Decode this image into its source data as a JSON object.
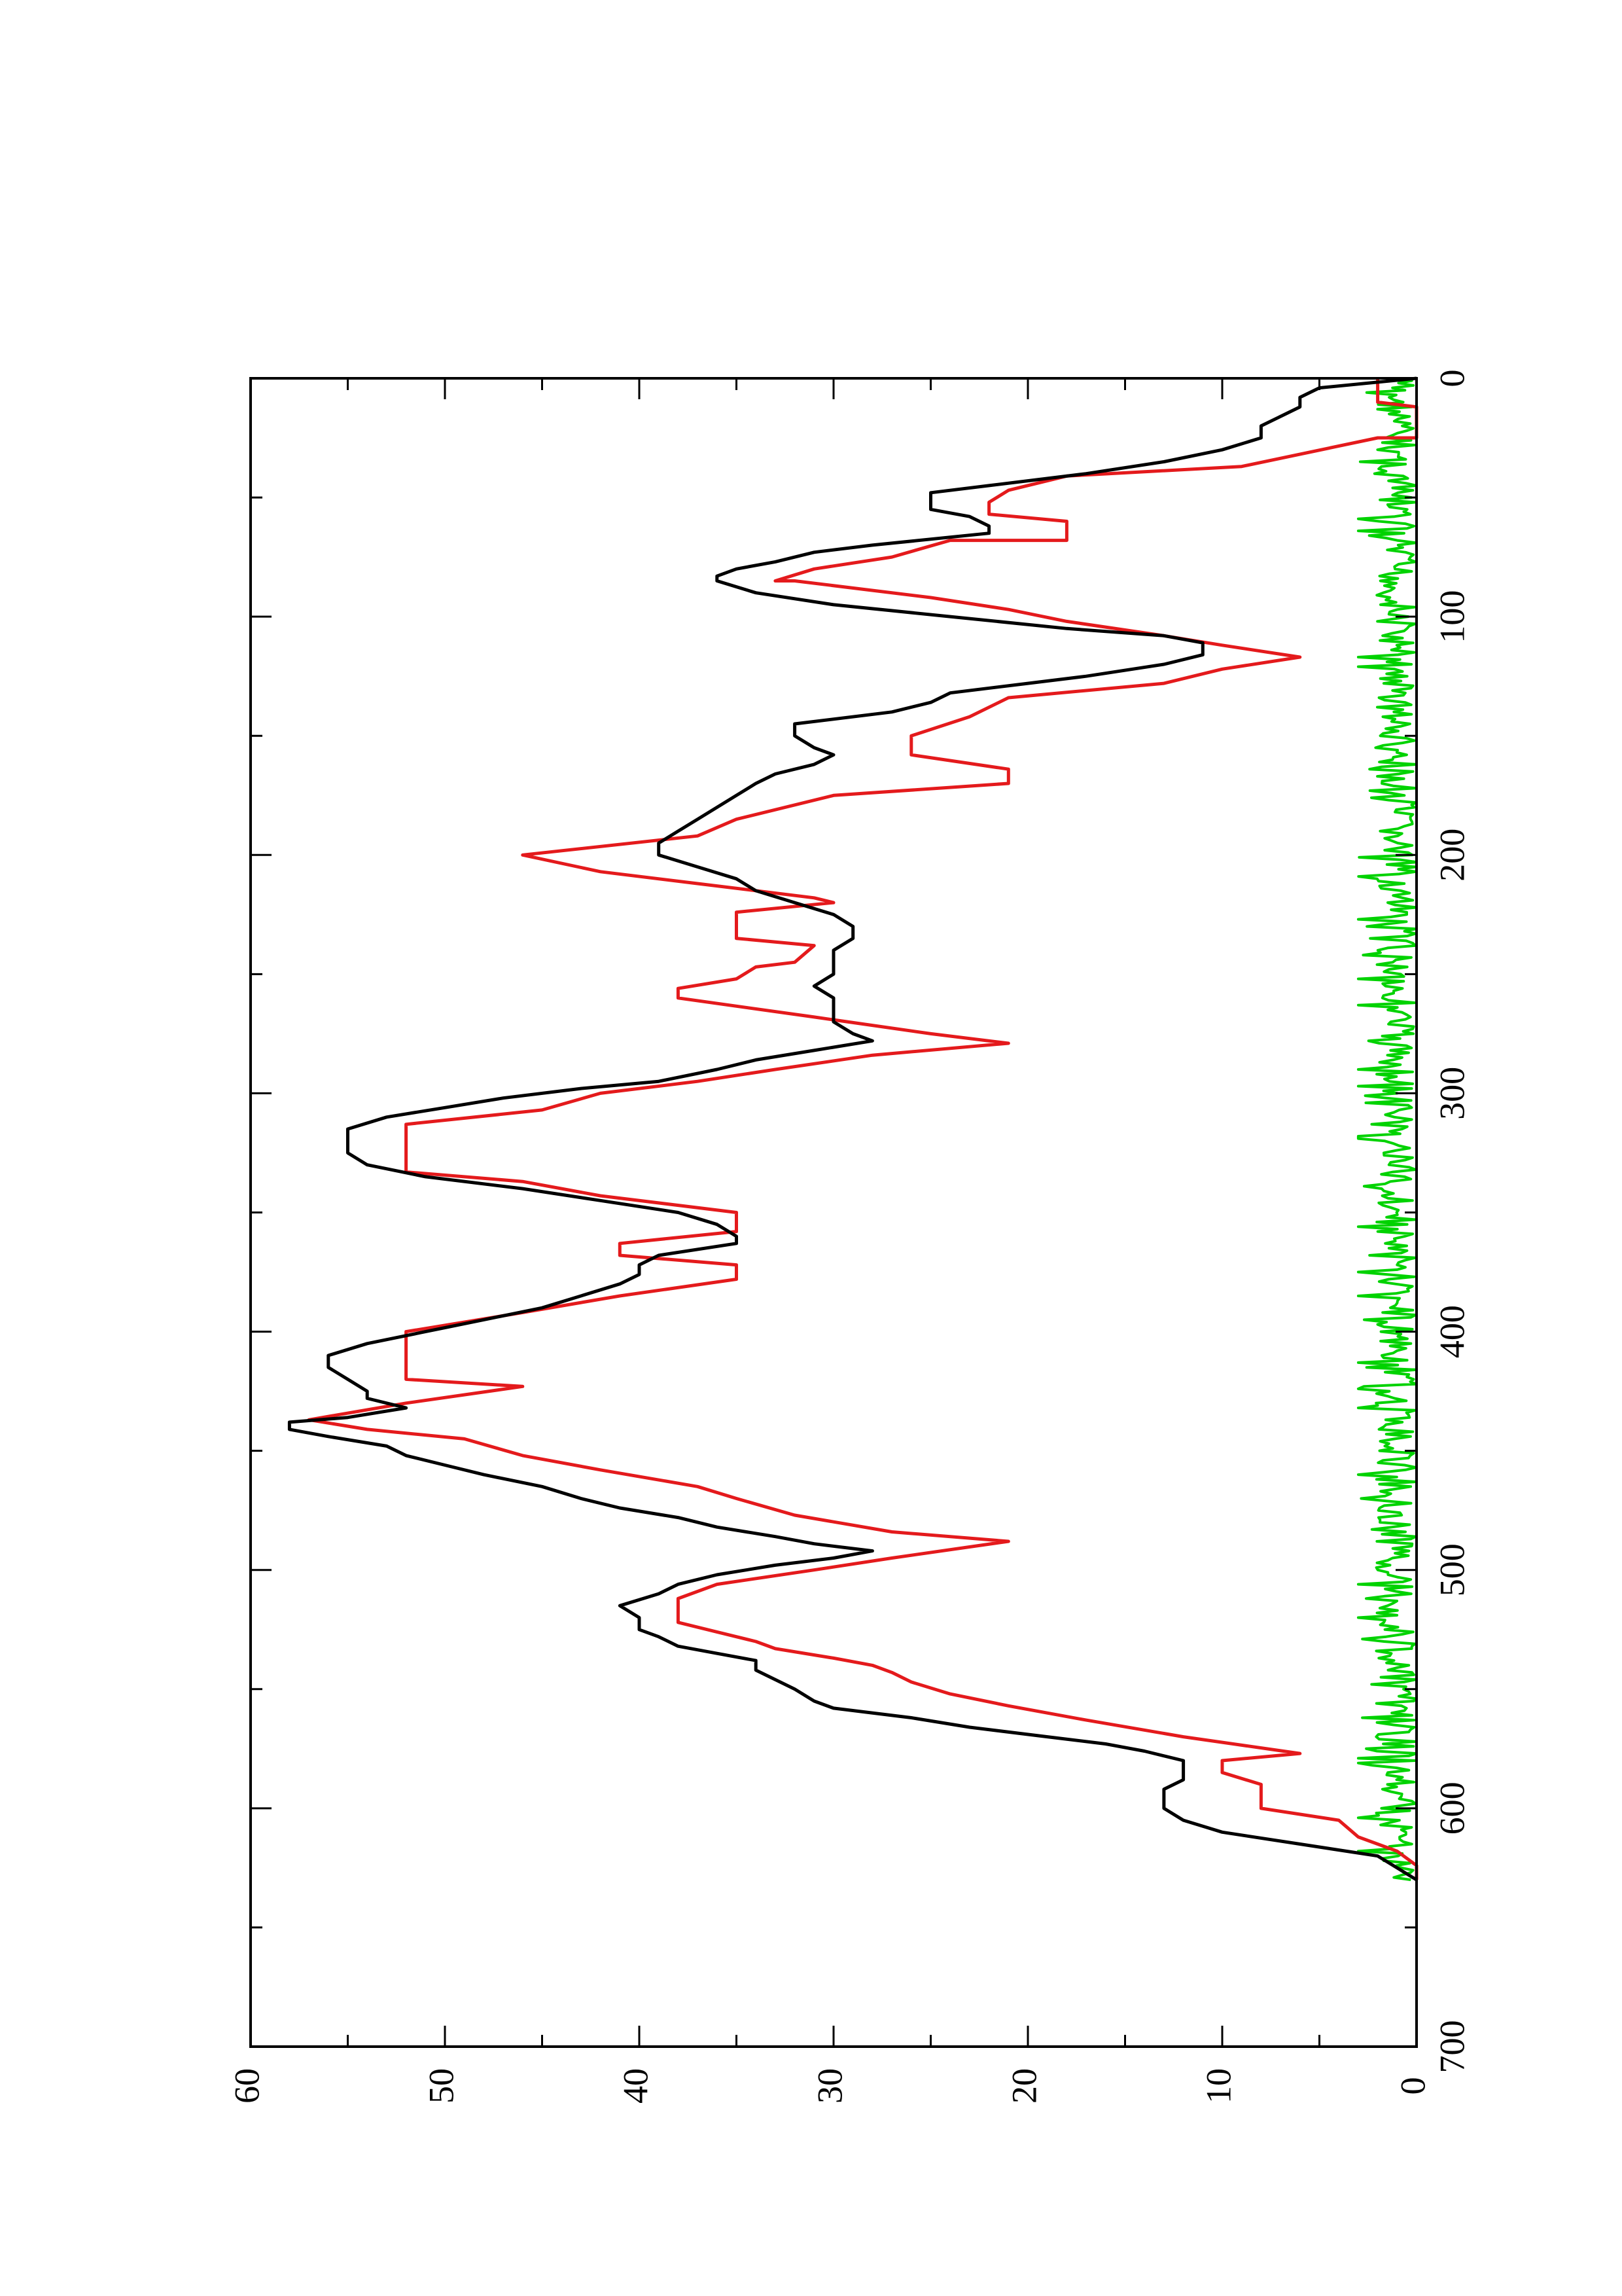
{
  "chart_data": {
    "type": "line",
    "orientation": "rotated-90",
    "title": "",
    "xlabel": "",
    "ylabel": "",
    "xlim": [
      0,
      700
    ],
    "ylim": [
      0,
      60
    ],
    "x_ticks": [
      "0",
      "100",
      "200",
      "300",
      "400",
      "500",
      "600",
      "700"
    ],
    "y_ticks": [
      "0",
      "10",
      "20",
      "30",
      "40",
      "50",
      "60"
    ],
    "grid": false,
    "legend": "none",
    "colors": {
      "axis": "#000000",
      "series_black": "#000000",
      "series_red": "#e41a1c",
      "series_green": "#00d200"
    },
    "series": [
      {
        "color": "#000000",
        "points": [
          [
            0,
            0
          ],
          [
            4,
            5
          ],
          [
            8,
            6
          ],
          [
            12,
            6
          ],
          [
            16,
            7
          ],
          [
            20,
            8
          ],
          [
            25,
            8
          ],
          [
            30,
            10
          ],
          [
            35,
            13
          ],
          [
            40,
            17
          ],
          [
            45,
            22
          ],
          [
            48,
            25
          ],
          [
            52,
            25
          ],
          [
            55,
            25
          ],
          [
            58,
            23
          ],
          [
            62,
            22
          ],
          [
            65,
            22
          ],
          [
            70,
            28
          ],
          [
            73,
            31
          ],
          [
            77,
            33
          ],
          [
            80,
            35
          ],
          [
            83,
            36
          ],
          [
            85,
            36
          ],
          [
            90,
            34
          ],
          [
            95,
            30
          ],
          [
            100,
            24
          ],
          [
            105,
            18
          ],
          [
            108,
            13
          ],
          [
            111,
            11
          ],
          [
            116,
            11
          ],
          [
            120,
            13
          ],
          [
            125,
            17
          ],
          [
            128,
            20
          ],
          [
            132,
            24
          ],
          [
            136,
            25
          ],
          [
            140,
            27
          ],
          [
            145,
            32
          ],
          [
            150,
            32
          ],
          [
            155,
            31
          ],
          [
            158,
            30
          ],
          [
            162,
            31
          ],
          [
            166,
            33
          ],
          [
            170,
            34
          ],
          [
            175,
            35
          ],
          [
            180,
            36
          ],
          [
            185,
            37
          ],
          [
            190,
            38
          ],
          [
            195,
            39
          ],
          [
            200,
            39
          ],
          [
            205,
            37
          ],
          [
            210,
            35
          ],
          [
            215,
            34
          ],
          [
            220,
            32
          ],
          [
            225,
            30
          ],
          [
            230,
            29
          ],
          [
            235,
            29
          ],
          [
            240,
            30
          ],
          [
            245,
            30
          ],
          [
            250,
            30
          ],
          [
            255,
            31
          ],
          [
            260,
            30
          ],
          [
            265,
            30
          ],
          [
            270,
            30
          ],
          [
            275,
            29
          ],
          [
            278,
            28
          ],
          [
            282,
            31
          ],
          [
            286,
            34
          ],
          [
            290,
            36
          ],
          [
            295,
            39
          ],
          [
            298,
            43
          ],
          [
            302,
            47
          ],
          [
            306,
            50
          ],
          [
            310,
            53
          ],
          [
            315,
            55
          ],
          [
            320,
            55
          ],
          [
            325,
            55
          ],
          [
            330,
            54
          ],
          [
            335,
            51
          ],
          [
            340,
            46
          ],
          [
            345,
            42
          ],
          [
            350,
            38
          ],
          [
            355,
            36
          ],
          [
            360,
            35
          ],
          [
            363,
            35
          ],
          [
            368,
            39
          ],
          [
            372,
            40
          ],
          [
            376,
            40
          ],
          [
            380,
            41
          ],
          [
            385,
            43
          ],
          [
            390,
            45
          ],
          [
            395,
            48
          ],
          [
            400,
            51
          ],
          [
            405,
            54
          ],
          [
            410,
            56
          ],
          [
            415,
            56
          ],
          [
            420,
            55
          ],
          [
            425,
            54
          ],
          [
            428,
            54
          ],
          [
            432,
            52
          ],
          [
            436,
            55
          ],
          [
            438,
            58
          ],
          [
            441,
            58
          ],
          [
            444,
            56
          ],
          [
            448,
            53
          ],
          [
            452,
            52
          ],
          [
            456,
            50
          ],
          [
            460,
            48
          ],
          [
            465,
            45
          ],
          [
            470,
            43
          ],
          [
            474,
            41
          ],
          [
            478,
            38
          ],
          [
            482,
            36
          ],
          [
            486,
            33
          ],
          [
            489,
            31
          ],
          [
            492,
            28
          ],
          [
            495,
            30
          ],
          [
            498,
            33
          ],
          [
            502,
            36
          ],
          [
            506,
            38
          ],
          [
            510,
            39
          ],
          [
            515,
            41
          ],
          [
            520,
            40
          ],
          [
            525,
            40
          ],
          [
            528,
            39
          ],
          [
            532,
            38
          ],
          [
            535,
            36
          ],
          [
            538,
            34
          ],
          [
            542,
            34
          ],
          [
            546,
            33
          ],
          [
            550,
            32
          ],
          [
            555,
            31
          ],
          [
            558,
            30
          ],
          [
            562,
            26
          ],
          [
            566,
            23
          ],
          [
            570,
            19
          ],
          [
            573,
            16
          ],
          [
            576,
            14
          ],
          [
            580,
            12
          ],
          [
            584,
            12
          ],
          [
            588,
            12
          ],
          [
            592,
            13
          ],
          [
            596,
            13
          ],
          [
            600,
            13
          ],
          [
            605,
            12
          ],
          [
            610,
            10
          ],
          [
            615,
            6
          ],
          [
            620,
            2
          ],
          [
            625,
            1
          ],
          [
            630,
            0
          ]
        ]
      },
      {
        "color": "#e41a1c",
        "points": [
          [
            0,
            2
          ],
          [
            10,
            2
          ],
          [
            12,
            0
          ],
          [
            25,
            0
          ],
          [
            25,
            2
          ],
          [
            37,
            9
          ],
          [
            41,
            18
          ],
          [
            47,
            21
          ],
          [
            52,
            22
          ],
          [
            57,
            22
          ],
          [
            60,
            18
          ],
          [
            68,
            18
          ],
          [
            68,
            24
          ],
          [
            75,
            27
          ],
          [
            80,
            31
          ],
          [
            85,
            33
          ],
          [
            85,
            32
          ],
          [
            92,
            25
          ],
          [
            97,
            21
          ],
          [
            102,
            18
          ],
          [
            108,
            13
          ],
          [
            112,
            10
          ],
          [
            117,
            6
          ],
          [
            122,
            10
          ],
          [
            128,
            13
          ],
          [
            134,
            21
          ],
          [
            142,
            23
          ],
          [
            150,
            26
          ],
          [
            158,
            26
          ],
          [
            164,
            21
          ],
          [
            170,
            21
          ],
          [
            175,
            30
          ],
          [
            185,
            35
          ],
          [
            192,
            37
          ],
          [
            200,
            46
          ],
          [
            207,
            42
          ],
          [
            212,
            37
          ],
          [
            218,
            31
          ],
          [
            220,
            30
          ],
          [
            224,
            35
          ],
          [
            230,
            35
          ],
          [
            235,
            35
          ],
          [
            238,
            31
          ],
          [
            245,
            32
          ],
          [
            247,
            34
          ],
          [
            252,
            35
          ],
          [
            256,
            38
          ],
          [
            260,
            38
          ],
          [
            268,
            31
          ],
          [
            275,
            25
          ],
          [
            279,
            21
          ],
          [
            284,
            28
          ],
          [
            290,
            33
          ],
          [
            295,
            37
          ],
          [
            300,
            42
          ],
          [
            307,
            45
          ],
          [
            313,
            52
          ],
          [
            320,
            52
          ],
          [
            328,
            52
          ],
          [
            333,
            52
          ],
          [
            337,
            46
          ],
          [
            343,
            42
          ],
          [
            350,
            35
          ],
          [
            355,
            35
          ],
          [
            358,
            35
          ],
          [
            363,
            41
          ],
          [
            368,
            41
          ],
          [
            372,
            35
          ],
          [
            378,
            35
          ],
          [
            385,
            41
          ],
          [
            392,
            46
          ],
          [
            400,
            52
          ],
          [
            407,
            52
          ],
          [
            415,
            52
          ],
          [
            420,
            52
          ],
          [
            423,
            46
          ],
          [
            430,
            52
          ],
          [
            437,
            57
          ],
          [
            441,
            54
          ],
          [
            445,
            49
          ],
          [
            452,
            46
          ],
          [
            458,
            42
          ],
          [
            465,
            37
          ],
          [
            470,
            35
          ],
          [
            477,
            32
          ],
          [
            484,
            27
          ],
          [
            488,
            21
          ],
          [
            495,
            27
          ],
          [
            500,
            31
          ],
          [
            506,
            36
          ],
          [
            512,
            38
          ],
          [
            516,
            38
          ],
          [
            522,
            38
          ],
          [
            526,
            36
          ],
          [
            530,
            34
          ],
          [
            533,
            33
          ],
          [
            537,
            30
          ],
          [
            540,
            28
          ],
          [
            543,
            27
          ],
          [
            547,
            26
          ],
          [
            552,
            24
          ],
          [
            557,
            21
          ],
          [
            563,
            17
          ],
          [
            570,
            12
          ],
          [
            577,
            6
          ],
          [
            580,
            10
          ],
          [
            585,
            10
          ],
          [
            590,
            8
          ],
          [
            595,
            8
          ],
          [
            600,
            8
          ],
          [
            605,
            4
          ],
          [
            612,
            3
          ],
          [
            618,
            1
          ],
          [
            624,
            0
          ],
          [
            630,
            0
          ]
        ]
      },
      {
        "color": "#00d200",
        "kind": "noise",
        "range": [
          0,
          630
        ],
        "amplitude": 3
      }
    ]
  }
}
